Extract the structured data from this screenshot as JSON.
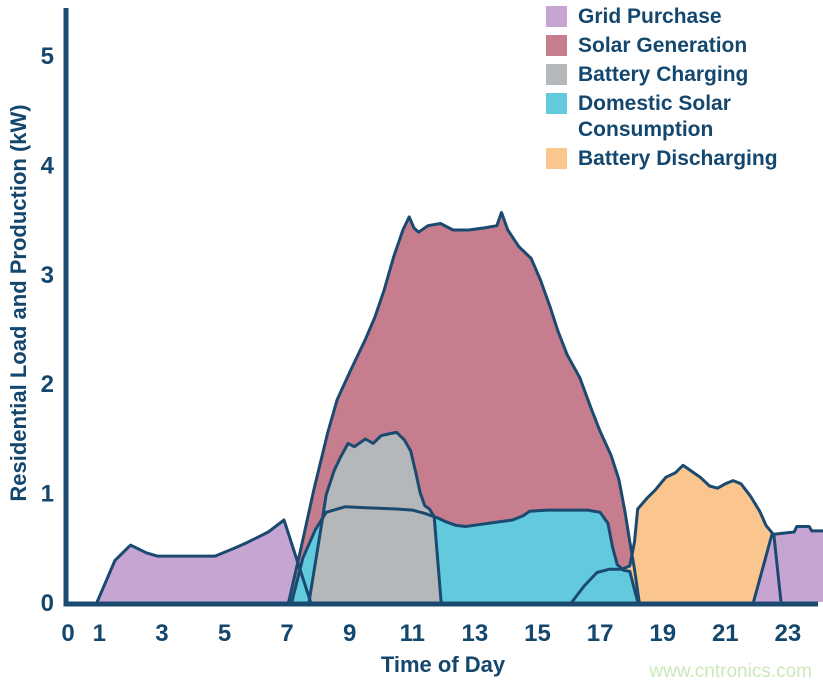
{
  "watermark": "www.cntronics.com",
  "colors": {
    "axis": "#1b4a70",
    "text": "#14476e",
    "watermark": "#cbe8ba",
    "background": "#ffffff"
  },
  "chart_data": {
    "type": "area",
    "title": "",
    "xlabel": "Time of Day",
    "ylabel": "Residential Load and Production (kW)",
    "xlim": [
      0,
      24.2
    ],
    "ylim": [
      0,
      5.45
    ],
    "grid": false,
    "legend_position": "top-right",
    "x_ticks": [
      {
        "label": "0",
        "hour": 0
      },
      {
        "label": "1",
        "hour": 1
      },
      {
        "label": "3",
        "hour": 3
      },
      {
        "label": "5",
        "hour": 5
      },
      {
        "label": "7",
        "hour": 7
      },
      {
        "label": "9",
        "hour": 9
      },
      {
        "label": "11",
        "hour": 11
      },
      {
        "label": "13",
        "hour": 13
      },
      {
        "label": "15",
        "hour": 15
      },
      {
        "label": "17",
        "hour": 17
      },
      {
        "label": "19",
        "hour": 19
      },
      {
        "label": "21",
        "hour": 21
      },
      {
        "label": "23",
        "hour": 23
      }
    ],
    "y_ticks": [
      {
        "label": "0",
        "value": 0
      },
      {
        "label": "1",
        "value": 1
      },
      {
        "label": "2",
        "value": 2
      },
      {
        "label": "3",
        "value": 3
      },
      {
        "label": "4",
        "value": 4
      },
      {
        "label": "5",
        "value": 5
      }
    ],
    "series": [
      {
        "id": "grid_purchase",
        "label": "Grid Purchase",
        "color": "#c7a5d2",
        "segments": [
          {
            "points": [
              [
                0.93,
                0
              ],
              [
                1.5,
                0.38
              ],
              [
                2.0,
                0.52
              ],
              [
                2.5,
                0.45
              ],
              [
                2.85,
                0.42
              ],
              [
                4.7,
                0.42
              ],
              [
                5.3,
                0.49
              ],
              [
                5.7,
                0.54
              ],
              [
                6.4,
                0.64
              ],
              [
                6.9,
                0.75
              ],
              [
                7.75,
                0
              ]
            ]
          },
          {
            "points": [
              [
                21.9,
                0
              ],
              [
                22.55,
                0.62
              ],
              [
                23.2,
                0.64
              ],
              [
                23.28,
                0.69
              ],
              [
                23.68,
                0.69
              ],
              [
                23.76,
                0.65
              ],
              [
                24.2,
                0.65
              ],
              [
                24.2,
                0
              ]
            ],
            "stroke_points": [
              [
                22.78,
                0
              ],
              [
                22.55,
                0.62
              ],
              [
                23.2,
                0.64
              ],
              [
                23.28,
                0.69
              ],
              [
                23.68,
                0.69
              ],
              [
                23.76,
                0.65
              ],
              [
                24.2,
                0.65
              ]
            ]
          }
        ]
      },
      {
        "id": "solar_generation",
        "label": "Solar Generation",
        "color": "#c67e8e",
        "segments": [
          {
            "points": [
              [
                7.05,
                0
              ],
              [
                7.45,
                0.5
              ],
              [
                7.85,
                1.02
              ],
              [
                8.3,
                1.55
              ],
              [
                8.6,
                1.85
              ],
              [
                9.0,
                2.1
              ],
              [
                9.5,
                2.4
              ],
              [
                9.8,
                2.6
              ],
              [
                10.1,
                2.85
              ],
              [
                10.4,
                3.15
              ],
              [
                10.7,
                3.4
              ],
              [
                10.9,
                3.52
              ],
              [
                11.05,
                3.42
              ],
              [
                11.2,
                3.38
              ],
              [
                11.5,
                3.44
              ],
              [
                11.9,
                3.46
              ],
              [
                12.3,
                3.4
              ],
              [
                12.8,
                3.4
              ],
              [
                13.3,
                3.42
              ],
              [
                13.7,
                3.44
              ],
              [
                13.85,
                3.56
              ],
              [
                14.05,
                3.4
              ],
              [
                14.4,
                3.25
              ],
              [
                14.8,
                3.14
              ],
              [
                15.1,
                2.94
              ],
              [
                15.4,
                2.7
              ],
              [
                15.65,
                2.48
              ],
              [
                15.95,
                2.26
              ],
              [
                16.35,
                2.05
              ],
              [
                16.7,
                1.78
              ],
              [
                17.0,
                1.56
              ],
              [
                17.35,
                1.34
              ],
              [
                17.6,
                1.12
              ],
              [
                17.8,
                0.82
              ],
              [
                17.95,
                0.55
              ],
              [
                18.1,
                0.3
              ],
              [
                18.25,
                0
              ]
            ]
          }
        ]
      },
      {
        "id": "battery_charging",
        "label": "Battery Charging",
        "color": "#b5b8bb",
        "segments": [
          {
            "points": [
              [
                7.7,
                0
              ],
              [
                8.05,
                0.62
              ],
              [
                8.25,
                0.98
              ],
              [
                8.5,
                1.2
              ],
              [
                8.7,
                1.32
              ],
              [
                8.95,
                1.45
              ],
              [
                9.15,
                1.42
              ],
              [
                9.5,
                1.49
              ],
              [
                9.75,
                1.45
              ],
              [
                10.0,
                1.52
              ],
              [
                10.3,
                1.54
              ],
              [
                10.5,
                1.55
              ],
              [
                10.75,
                1.48
              ],
              [
                10.95,
                1.38
              ],
              [
                11.1,
                1.2
              ],
              [
                11.25,
                1.0
              ],
              [
                11.4,
                0.88
              ],
              [
                11.55,
                0.85
              ],
              [
                11.7,
                0.78
              ],
              [
                11.92,
                0
              ]
            ]
          }
        ]
      },
      {
        "id": "domestic_solar_consumption",
        "label": "Domestic Solar Consumption",
        "color": "#63cade",
        "segments": [
          {
            "points": [
              [
                7.15,
                0
              ],
              [
                7.5,
                0.4
              ],
              [
                7.9,
                0.66
              ],
              [
                8.25,
                0.82
              ],
              [
                8.85,
                0.87
              ],
              [
                9.6,
                0.86
              ],
              [
                10.5,
                0.85
              ],
              [
                11.0,
                0.84
              ],
              [
                11.4,
                0.81
              ],
              [
                11.8,
                0.77
              ],
              [
                12.1,
                0.73
              ],
              [
                12.4,
                0.7
              ],
              [
                12.7,
                0.69
              ],
              [
                13.2,
                0.71
              ],
              [
                13.7,
                0.73
              ],
              [
                14.2,
                0.75
              ],
              [
                14.55,
                0.79
              ],
              [
                14.75,
                0.83
              ],
              [
                15.3,
                0.84
              ],
              [
                16.0,
                0.84
              ],
              [
                16.6,
                0.84
              ],
              [
                17.0,
                0.82
              ],
              [
                17.25,
                0.72
              ],
              [
                17.4,
                0.5
              ],
              [
                17.55,
                0.34
              ],
              [
                17.75,
                0.29
              ],
              [
                17.95,
                0.28
              ],
              [
                18.2,
                0
              ]
            ]
          }
        ]
      },
      {
        "id": "battery_discharging",
        "label": "Battery Discharging",
        "color": "#fbc68e",
        "segments": [
          {
            "points": [
              [
                16.1,
                0
              ],
              [
                16.5,
                0.15
              ],
              [
                16.9,
                0.27
              ],
              [
                17.3,
                0.3
              ],
              [
                17.7,
                0.3
              ],
              [
                17.95,
                0.33
              ],
              [
                18.1,
                0.55
              ],
              [
                18.2,
                0.85
              ],
              [
                18.5,
                0.95
              ],
              [
                18.75,
                1.02
              ],
              [
                19.1,
                1.14
              ],
              [
                19.4,
                1.18
              ],
              [
                19.65,
                1.25
              ],
              [
                19.9,
                1.2
              ],
              [
                20.2,
                1.14
              ],
              [
                20.5,
                1.06
              ],
              [
                20.75,
                1.04
              ],
              [
                21.0,
                1.08
              ],
              [
                21.25,
                1.11
              ],
              [
                21.5,
                1.08
              ],
              [
                21.8,
                0.97
              ],
              [
                22.1,
                0.83
              ],
              [
                22.3,
                0.7
              ],
              [
                22.5,
                0.63
              ],
              [
                21.9,
                0
              ]
            ]
          }
        ]
      }
    ],
    "paint_order": [
      "grid_purchase",
      "solar_generation",
      "battery_discharging",
      "domestic_solar_consumption",
      "battery_charging"
    ]
  }
}
